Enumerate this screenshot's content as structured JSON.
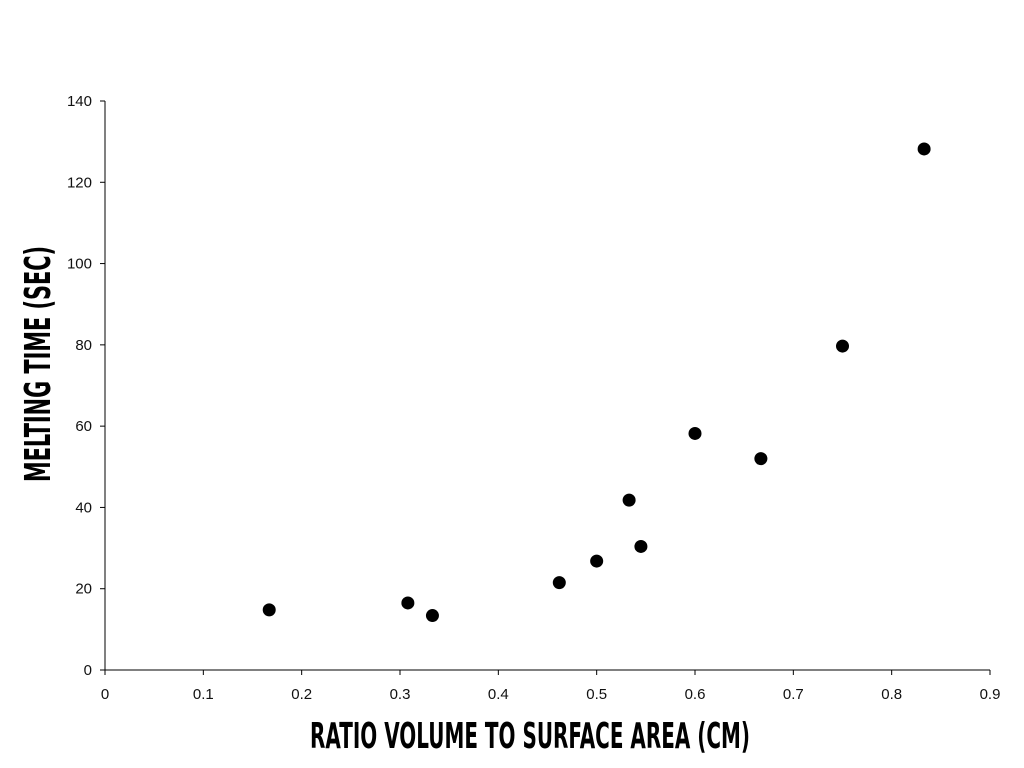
{
  "chart_data": {
    "type": "scatter",
    "xlabel": "Ratio Volume to Surface Area (cm)",
    "ylabel": "Melting Time (sec)",
    "xlim": [
      0,
      0.9
    ],
    "ylim": [
      0,
      140
    ],
    "xticks": [
      0,
      0.1,
      0.2,
      0.3,
      0.4,
      0.5,
      0.6,
      0.7,
      0.8,
      0.9
    ],
    "yticks": [
      0,
      20,
      40,
      60,
      80,
      100,
      120,
      140
    ],
    "grid": false,
    "legend": "none",
    "marker_color": "#000000",
    "points": [
      {
        "x": 0.167,
        "y": 14.8
      },
      {
        "x": 0.308,
        "y": 16.5
      },
      {
        "x": 0.333,
        "y": 13.4
      },
      {
        "x": 0.462,
        "y": 21.5
      },
      {
        "x": 0.5,
        "y": 26.8
      },
      {
        "x": 0.533,
        "y": 41.8
      },
      {
        "x": 0.545,
        "y": 30.4
      },
      {
        "x": 0.6,
        "y": 58.2
      },
      {
        "x": 0.667,
        "y": 52.0
      },
      {
        "x": 0.75,
        "y": 79.7
      },
      {
        "x": 0.833,
        "y": 128.2
      }
    ]
  }
}
